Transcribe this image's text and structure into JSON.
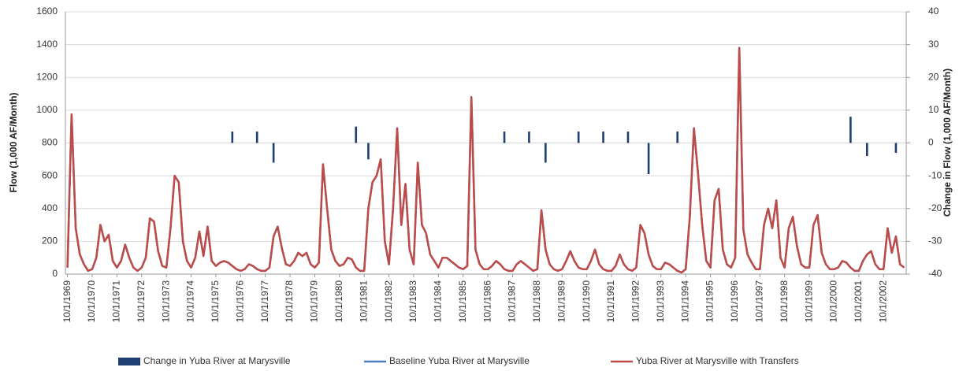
{
  "chart_data": {
    "type": "combo",
    "y_label": "Flow (1,000 AF/Month)",
    "y2_label": "Change in Flow (1,000 AF/Month)",
    "categories": [
      "10/1/1969",
      null,
      null,
      null,
      null,
      null,
      "10/1/1970",
      null,
      null,
      null,
      null,
      null,
      "10/1/1971",
      null,
      null,
      null,
      null,
      null,
      "10/1/1972",
      null,
      null,
      null,
      null,
      null,
      "10/1/1973",
      null,
      null,
      null,
      null,
      null,
      "10/1/1974",
      null,
      null,
      null,
      null,
      null,
      "10/1/1975",
      null,
      null,
      null,
      null,
      null,
      "10/1/1976",
      null,
      null,
      null,
      null,
      null,
      "10/1/1977",
      null,
      null,
      null,
      null,
      null,
      "10/1/1978",
      null,
      null,
      null,
      null,
      null,
      "10/1/1979",
      null,
      null,
      null,
      null,
      null,
      "10/1/1980",
      null,
      null,
      null,
      null,
      null,
      "10/1/1981",
      null,
      null,
      null,
      null,
      null,
      "10/1/1982",
      null,
      null,
      null,
      null,
      null,
      "10/1/1983",
      null,
      null,
      null,
      null,
      null,
      "10/1/1984",
      null,
      null,
      null,
      null,
      null,
      "10/1/1985",
      null,
      null,
      null,
      null,
      null,
      "10/1/1986",
      null,
      null,
      null,
      null,
      null,
      "10/1/1987",
      null,
      null,
      null,
      null,
      null,
      "10/1/1988",
      null,
      null,
      null,
      null,
      null,
      "10/1/1989",
      null,
      null,
      null,
      null,
      null,
      "10/1/1990",
      null,
      null,
      null,
      null,
      null,
      "10/1/1991",
      null,
      null,
      null,
      null,
      null,
      "10/1/1992",
      null,
      null,
      null,
      null,
      null,
      "10/1/1993",
      null,
      null,
      null,
      null,
      null,
      "10/1/1994",
      null,
      null,
      null,
      null,
      null,
      "10/1/1995",
      null,
      null,
      null,
      null,
      null,
      "10/1/1996",
      null,
      null,
      null,
      null,
      null,
      "10/1/1997",
      null,
      null,
      null,
      null,
      null,
      "10/1/1998",
      null,
      null,
      null,
      null,
      null,
      "10/1/1999",
      null,
      null,
      null,
      null,
      null,
      "10/1/2000",
      null,
      null,
      null,
      null,
      null,
      "10/1/2001",
      null,
      null,
      null,
      null,
      null,
      "10/1/2002",
      null,
      null,
      null,
      null,
      null
    ],
    "series": [
      {
        "name": "Change in Yuba River at Marysville",
        "type": "bar",
        "axis": "y2",
        "color": "#1f3f73",
        "values": [
          null,
          null,
          null,
          null,
          null,
          null,
          null,
          null,
          null,
          null,
          null,
          null,
          null,
          null,
          null,
          null,
          null,
          null,
          null,
          null,
          null,
          null,
          null,
          null,
          null,
          null,
          null,
          null,
          null,
          null,
          null,
          null,
          null,
          null,
          null,
          null,
          null,
          null,
          null,
          null,
          3.5,
          null,
          null,
          null,
          null,
          null,
          3.5,
          null,
          null,
          null,
          -6,
          null,
          null,
          null,
          null,
          null,
          null,
          null,
          null,
          null,
          null,
          null,
          null,
          null,
          null,
          null,
          null,
          null,
          null,
          null,
          5,
          null,
          null,
          -5,
          null,
          null,
          null,
          null,
          null,
          null,
          null,
          null,
          null,
          null,
          null,
          null,
          null,
          null,
          null,
          null,
          null,
          null,
          null,
          null,
          null,
          null,
          null,
          null,
          null,
          null,
          null,
          null,
          null,
          null,
          null,
          null,
          3.5,
          null,
          null,
          null,
          null,
          null,
          3.5,
          null,
          null,
          null,
          -6,
          null,
          null,
          null,
          null,
          null,
          null,
          null,
          3.5,
          null,
          null,
          null,
          null,
          null,
          3.5,
          null,
          null,
          null,
          null,
          null,
          3.5,
          null,
          null,
          null,
          null,
          -9.5,
          null,
          null,
          null,
          null,
          null,
          null,
          3.5,
          null,
          null,
          null,
          null,
          null,
          null,
          null,
          null,
          null,
          null,
          null,
          null,
          null,
          null,
          null,
          null,
          null,
          null,
          null,
          null,
          null,
          null,
          null,
          null,
          null,
          null,
          null,
          null,
          null,
          null,
          null,
          null,
          null,
          null,
          null,
          null,
          null,
          null,
          null,
          null,
          null,
          8,
          null,
          null,
          null,
          -4,
          null,
          null,
          null,
          null,
          null,
          null,
          -3,
          null,
          null
        ]
      },
      {
        "name": "Baseline Yuba River at Marysville",
        "type": "line",
        "color": "#4a7ebb",
        "values": [
          40,
          975,
          280,
          120,
          60,
          20,
          30,
          100,
          300,
          200,
          240,
          80,
          40,
          80,
          180,
          100,
          40,
          20,
          40,
          100,
          340,
          320,
          140,
          50,
          40,
          280,
          600,
          560,
          200,
          80,
          40,
          100,
          260,
          110,
          290,
          80,
          50,
          70,
          80,
          70,
          50,
          30,
          20,
          30,
          60,
          50,
          30,
          20,
          20,
          40,
          230,
          290,
          160,
          60,
          50,
          80,
          130,
          110,
          130,
          60,
          40,
          70,
          670,
          400,
          150,
          80,
          50,
          60,
          100,
          90,
          40,
          20,
          20,
          400,
          560,
          600,
          700,
          200,
          60,
          400,
          890,
          300,
          550,
          150,
          60,
          680,
          300,
          250,
          120,
          80,
          40,
          100,
          100,
          80,
          60,
          40,
          30,
          50,
          1080,
          150,
          60,
          30,
          30,
          50,
          80,
          60,
          30,
          20,
          20,
          60,
          80,
          60,
          40,
          20,
          30,
          390,
          150,
          60,
          30,
          20,
          30,
          80,
          140,
          80,
          40,
          30,
          30,
          80,
          150,
          60,
          30,
          20,
          20,
          50,
          120,
          60,
          30,
          20,
          40,
          300,
          250,
          120,
          50,
          30,
          30,
          70,
          60,
          40,
          20,
          10,
          30,
          350,
          890,
          610,
          300,
          80,
          40,
          450,
          520,
          150,
          60,
          40,
          100,
          1380,
          270,
          120,
          70,
          30,
          30,
          300,
          400,
          280,
          450,
          100,
          40,
          280,
          350,
          170,
          60,
          40,
          40,
          300,
          360,
          130,
          60,
          30,
          30,
          40,
          80,
          70,
          40,
          20,
          20,
          80,
          120,
          140,
          60,
          30,
          30,
          280,
          130,
          230,
          60,
          40
        ]
      },
      {
        "name": "Yuba River at Marysville with Transfers",
        "type": "line",
        "color": "#be4b48",
        "values": [
          40,
          975,
          280,
          120,
          60,
          20,
          30,
          100,
          300,
          200,
          240,
          80,
          40,
          80,
          180,
          100,
          40,
          20,
          40,
          100,
          340,
          320,
          140,
          50,
          40,
          280,
          600,
          560,
          200,
          80,
          40,
          100,
          260,
          110,
          290,
          80,
          50,
          70,
          80,
          70,
          50,
          30,
          20,
          30,
          60,
          50,
          30,
          20,
          20,
          40,
          230,
          290,
          160,
          60,
          50,
          80,
          130,
          110,
          130,
          60,
          40,
          70,
          670,
          400,
          150,
          80,
          50,
          60,
          100,
          90,
          40,
          20,
          20,
          400,
          560,
          600,
          700,
          200,
          60,
          400,
          890,
          300,
          550,
          150,
          60,
          680,
          300,
          250,
          120,
          80,
          40,
          100,
          100,
          80,
          60,
          40,
          30,
          50,
          1080,
          150,
          60,
          30,
          30,
          50,
          80,
          60,
          30,
          20,
          20,
          60,
          80,
          60,
          40,
          20,
          30,
          390,
          150,
          60,
          30,
          20,
          30,
          80,
          140,
          80,
          40,
          30,
          30,
          80,
          150,
          60,
          30,
          20,
          20,
          50,
          120,
          60,
          30,
          20,
          40,
          300,
          250,
          120,
          50,
          30,
          30,
          70,
          60,
          40,
          20,
          10,
          30,
          350,
          890,
          610,
          300,
          80,
          40,
          450,
          520,
          150,
          60,
          40,
          100,
          1380,
          270,
          120,
          70,
          30,
          30,
          300,
          400,
          280,
          450,
          100,
          40,
          280,
          350,
          170,
          60,
          40,
          40,
          300,
          360,
          130,
          60,
          30,
          30,
          40,
          80,
          70,
          40,
          20,
          20,
          80,
          120,
          140,
          60,
          30,
          30,
          280,
          130,
          230,
          60,
          40
        ]
      }
    ],
    "ylim": [
      0,
      1600
    ],
    "yticks": [
      0,
      200,
      400,
      600,
      800,
      1000,
      1200,
      1400,
      1600
    ],
    "y2lim": [
      -40,
      40
    ],
    "y2ticks": [
      -40,
      -30,
      -20,
      -10,
      0,
      10,
      20,
      30,
      40
    ],
    "grid": true,
    "legend": "bottom"
  }
}
